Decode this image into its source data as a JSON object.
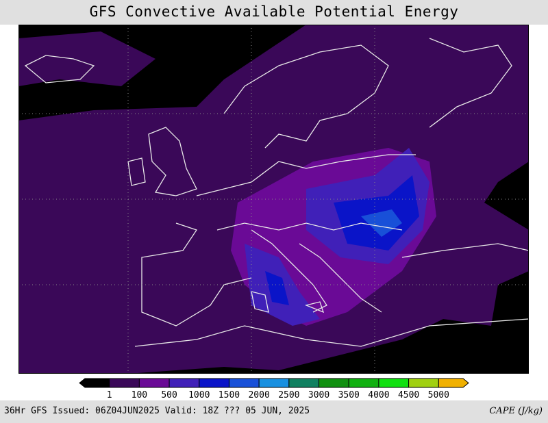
{
  "header": {
    "title": "GFS Convective Available Potential Energy"
  },
  "colorbar": {
    "colors": [
      "#000000",
      "#3a0858",
      "#6a0a96",
      "#4020b8",
      "#0a14c8",
      "#1850d8",
      "#1890e0",
      "#108060",
      "#109010",
      "#10b010",
      "#10e010",
      "#a0d010",
      "#f0b000"
    ],
    "labels": [
      1,
      100,
      500,
      1000,
      1500,
      2000,
      2500,
      3000,
      3500,
      4000,
      4500,
      5000
    ]
  },
  "footer": {
    "issued": "36Hr GFS Issued: 06Z04JUN2025 Valid: 18Z ??? 05 JUN, 2025",
    "field": "CAPE (J/kg)"
  }
}
